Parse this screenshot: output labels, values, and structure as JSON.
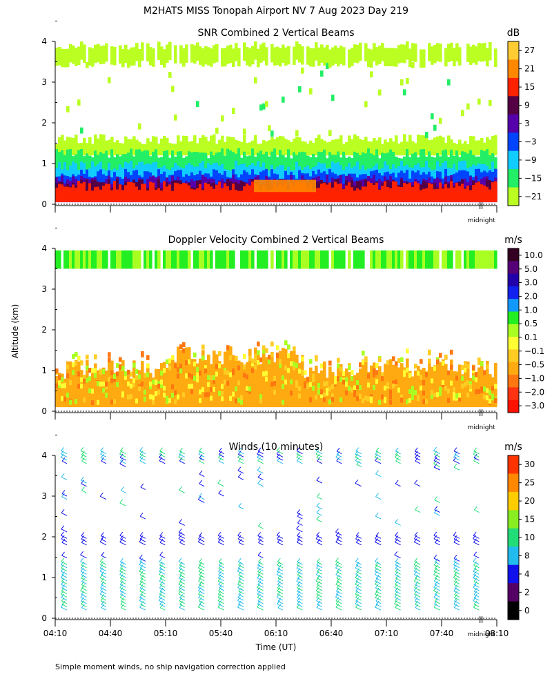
{
  "chart_data": {
    "type": "heatmap",
    "title": "M2HATS MISS Tonopah Airport NV   7 Aug 2023 Day 219",
    "ylabel": "Altitude (km)",
    "xlabel": "Time (UT)",
    "footnote": "Simple moment winds, no ship navigation correction applied",
    "midnight_label": "midnight",
    "x_ticks": [
      "04:10",
      "04:40",
      "05:10",
      "05:40",
      "06:10",
      "06:40",
      "07:10",
      "07:40",
      "08:10"
    ],
    "y_ticks": [
      "0",
      "1",
      "2",
      "3",
      "4"
    ],
    "ylim": [
      0,
      4
    ],
    "panels": [
      {
        "name": "snr",
        "title": "SNR Combined 2 Vertical Beams",
        "units": "dB",
        "colorbar_labels": [
          "27",
          "21",
          "15",
          "9",
          "3",
          "−3",
          "−9",
          "−15",
          "−21"
        ],
        "colorbar_colors": [
          "#ffcc33",
          "#ff8800",
          "#ff2200",
          "#550044",
          "#5500aa",
          "#0044ff",
          "#11ccff",
          "#22ee66",
          "#bbff22"
        ]
      },
      {
        "name": "doppler",
        "title": "Doppler Velocity Combined 2 Vertical Beams",
        "units": "m/s",
        "colorbar_labels": [
          "10.0",
          "5.0",
          "3.0",
          "2.0",
          "1.0",
          "0.5",
          "0.1",
          "−0.1",
          "−0.5",
          "−1.0",
          "−2.0",
          "−3.0"
        ],
        "colorbar_colors": [
          "#330022",
          "#550077",
          "#2200aa",
          "#1122ee",
          "#1199ff",
          "#22ee22",
          "#aaff22",
          "#ffff33",
          "#ffcc22",
          "#ffaa11",
          "#ff7711",
          "#ff3311",
          "#ff1100"
        ]
      },
      {
        "name": "winds",
        "title": "Winds (10 minutes)",
        "units": "m/s",
        "colorbar_labels": [
          "30",
          "25",
          "20",
          "15",
          "10",
          "8",
          "4",
          "2",
          "0"
        ],
        "colorbar_colors": [
          "#ff3300",
          "#ff8800",
          "#ffcc00",
          "#88ee22",
          "#22dd77",
          "#22bbee",
          "#1111ee",
          "#550066",
          "#000000"
        ]
      }
    ]
  }
}
